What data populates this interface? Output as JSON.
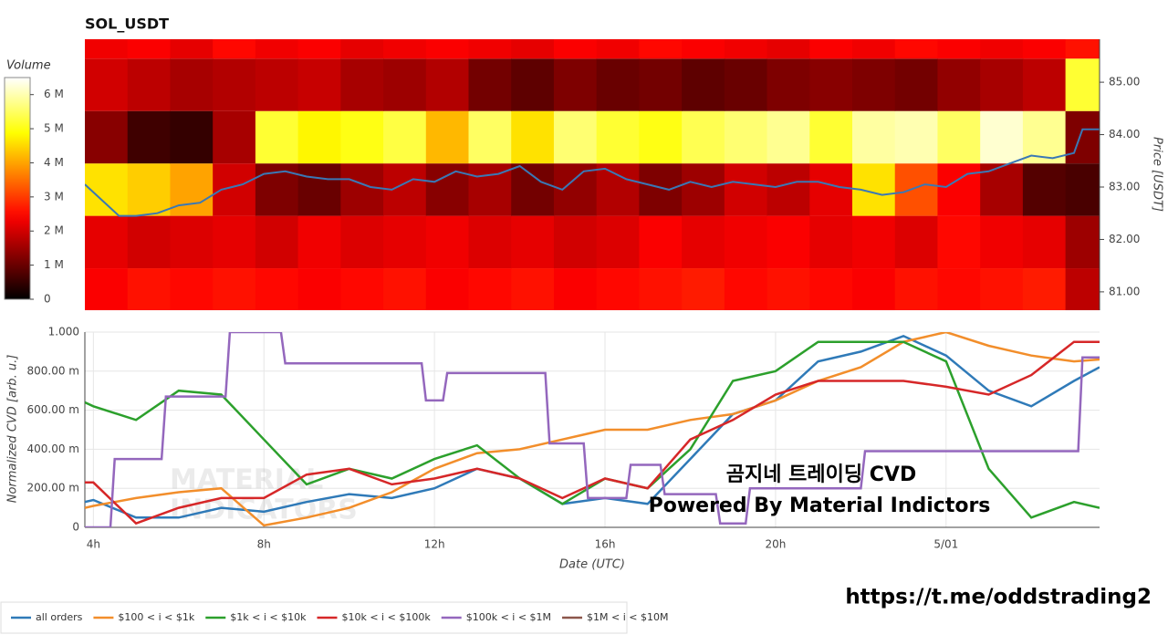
{
  "chart_data": [
    {
      "type": "heatmap",
      "title": "SOL_USDT",
      "ylabel": "Price [USDT]",
      "colorbar_title": "Volume",
      "colormap": "hot",
      "x": [
        3.8,
        4.8,
        5.8,
        6.8,
        7.8,
        8.8,
        9.8,
        10.8,
        11.8,
        12.8,
        13.8,
        14.8,
        15.8,
        16.8,
        17.8,
        18.8,
        19.8,
        20.8,
        21.8,
        22.8,
        23.8,
        24.8,
        25.8,
        26.8,
        27.6
      ],
      "y_bins": [
        80.45,
        81.45,
        82.45,
        83.45,
        84.45,
        85.45,
        86.45
      ],
      "values": [
        [
          2400000,
          2600000,
          2500000,
          2600000,
          2500000,
          2400000,
          2500000,
          2600000,
          2400000,
          2500000,
          2600000,
          2400000,
          2500000,
          2600000,
          2700000,
          2500000,
          2600000,
          2500000,
          2400000,
          2600000,
          2500000,
          2600000,
          2700000,
          1800000
        ],
        [
          2200000,
          2000000,
          2100000,
          2200000,
          2000000,
          2300000,
          2100000,
          2200000,
          2300000,
          2100000,
          2200000,
          2000000,
          2100000,
          2400000,
          2200000,
          2300000,
          2400000,
          2200000,
          2300000,
          2100000,
          2500000,
          2300000,
          2200000,
          1500000
        ],
        [
          4600000,
          4400000,
          4000000,
          2000000,
          1200000,
          1000000,
          1500000,
          1800000,
          1300000,
          1600000,
          1100000,
          1400000,
          1700000,
          1200000,
          1500000,
          2000000,
          1800000,
          2200000,
          4600000,
          3200000,
          2400000,
          1600000,
          800000,
          700000
        ],
        [
          1300000,
          600000,
          500000,
          1600000,
          5200000,
          4800000,
          5000000,
          5300000,
          4200000,
          5500000,
          4600000,
          5600000,
          5200000,
          5000000,
          5400000,
          5600000,
          5800000,
          5200000,
          5900000,
          6000000,
          5500000,
          6200000,
          5800000,
          1200000
        ],
        [
          2000000,
          1800000,
          1600000,
          1700000,
          1800000,
          1900000,
          1600000,
          1500000,
          1700000,
          1100000,
          900000,
          1200000,
          1000000,
          1100000,
          900000,
          1000000,
          1200000,
          1300000,
          1200000,
          1100000,
          1400000,
          1600000,
          1800000,
          5200000
        ],
        [
          2300000,
          2400000,
          2200000,
          2500000,
          2300000,
          2400000,
          2200000,
          2300000,
          2400000,
          2300000,
          2200000,
          2400000,
          2300000,
          2500000,
          2400000,
          2300000,
          2200000,
          2400000,
          2300000,
          2500000,
          2400000,
          2300000,
          2400000,
          2600000
        ]
      ],
      "xlim": [
        3.8,
        27.6
      ],
      "ylim": [
        80.65,
        85.82
      ],
      "yticks": [
        {
          "value": 81,
          "label": "81.00"
        },
        {
          "value": 82,
          "label": "82.00"
        },
        {
          "value": 83,
          "label": "83.00"
        },
        {
          "value": 84,
          "label": "84.00"
        },
        {
          "value": 85,
          "label": "85.00"
        }
      ],
      "zlim": [
        0,
        6500000
      ],
      "zticks": [
        0,
        {
          "value": 1000000,
          "label": "1 M"
        },
        {
          "value": 2000000,
          "label": "2 M"
        },
        {
          "value": 3000000,
          "label": "3 M"
        },
        {
          "value": 4000000,
          "label": "4 M"
        },
        {
          "value": 5000000,
          "label": "5 M"
        },
        {
          "value": 6000000,
          "label": "6 M"
        }
      ],
      "price_line": {
        "color": "#3a78b5",
        "x": [
          3.8,
          4.2,
          4.6,
          5.0,
          5.5,
          6.0,
          6.5,
          7.0,
          7.5,
          8.0,
          8.5,
          9.0,
          9.5,
          10.0,
          10.5,
          11.0,
          11.5,
          12.0,
          12.5,
          13.0,
          13.5,
          14.0,
          14.5,
          15.0,
          15.5,
          16.0,
          16.5,
          17.0,
          17.5,
          18.0,
          18.5,
          19.0,
          19.5,
          20.0,
          20.5,
          21.0,
          21.5,
          22.0,
          22.5,
          23.0,
          23.5,
          24.0,
          24.5,
          25.0,
          25.5,
          26.0,
          26.5,
          27.0,
          27.2,
          27.6
        ],
        "values": [
          83.05,
          82.75,
          82.45,
          82.45,
          82.5,
          82.65,
          82.7,
          82.95,
          83.05,
          83.25,
          83.3,
          83.2,
          83.15,
          83.15,
          83.0,
          82.95,
          83.15,
          83.1,
          83.3,
          83.2,
          83.25,
          83.4,
          83.1,
          82.95,
          83.3,
          83.35,
          83.15,
          83.05,
          82.95,
          83.1,
          83.0,
          83.1,
          83.05,
          83.0,
          83.1,
          83.1,
          83.0,
          82.95,
          82.85,
          82.9,
          83.05,
          83.0,
          83.25,
          83.3,
          83.45,
          83.6,
          83.55,
          83.65,
          84.1,
          84.1
        ]
      }
    },
    {
      "type": "line",
      "xlabel": "Date (UTC)",
      "ylabel": "Normalized CVD [arb. u.]",
      "grid": true,
      "xlim": [
        3.8,
        27.6
      ],
      "ylim": [
        0,
        1.0
      ],
      "xticks": [
        {
          "value": 4,
          "label": "4h"
        },
        {
          "value": 8,
          "label": "8h"
        },
        {
          "value": 12,
          "label": "12h"
        },
        {
          "value": 16,
          "label": "16h"
        },
        {
          "value": 20,
          "label": "20h"
        },
        {
          "value": 24,
          "label": "5/01"
        }
      ],
      "yticks": [
        0,
        {
          "value": 0.2,
          "label": "200.00 m"
        },
        {
          "value": 0.4,
          "label": "400.00 m"
        },
        {
          "value": 0.6,
          "label": "600.00 m"
        },
        {
          "value": 0.8,
          "label": "800.00 m"
        },
        {
          "value": 1.0,
          "label": "1.000"
        }
      ],
      "series": [
        {
          "name": "all orders",
          "color": "#2f7ab8",
          "x": [
            3.8,
            4,
            5,
            6,
            7,
            8,
            9,
            10,
            11,
            12,
            13,
            14,
            15,
            16,
            17,
            18,
            19,
            20,
            21,
            22,
            23,
            24,
            25,
            26,
            27,
            27.6
          ],
          "values": [
            0.13,
            0.14,
            0.05,
            0.05,
            0.1,
            0.08,
            0.13,
            0.17,
            0.15,
            0.2,
            0.3,
            0.25,
            0.12,
            0.15,
            0.12,
            0.35,
            0.58,
            0.65,
            0.85,
            0.9,
            0.98,
            0.88,
            0.7,
            0.62,
            0.75,
            0.82
          ]
        },
        {
          "name": "$100 < i < $1k",
          "color": "#f28e2b",
          "x": [
            3.8,
            4,
            5,
            6,
            7,
            8,
            9,
            10,
            11,
            12,
            13,
            14,
            15,
            16,
            17,
            18,
            19,
            20,
            21,
            22,
            23,
            24,
            25,
            26,
            27,
            27.6
          ],
          "values": [
            0.1,
            0.11,
            0.15,
            0.18,
            0.2,
            0.01,
            0.05,
            0.1,
            0.18,
            0.3,
            0.38,
            0.4,
            0.45,
            0.5,
            0.5,
            0.55,
            0.58,
            0.65,
            0.75,
            0.82,
            0.95,
            1.0,
            0.93,
            0.88,
            0.85,
            0.86
          ]
        },
        {
          "name": "$1k < i < $10k",
          "color": "#2ca02c",
          "x": [
            3.8,
            4,
            5,
            6,
            7,
            8,
            9,
            10,
            11,
            12,
            13,
            14,
            15,
            16,
            17,
            18,
            19,
            20,
            21,
            22,
            23,
            24,
            25,
            26,
            27,
            27.6
          ],
          "values": [
            0.64,
            0.62,
            0.55,
            0.7,
            0.68,
            0.45,
            0.22,
            0.3,
            0.25,
            0.35,
            0.42,
            0.25,
            0.12,
            0.25,
            0.2,
            0.4,
            0.75,
            0.8,
            0.95,
            0.95,
            0.95,
            0.85,
            0.3,
            0.05,
            0.13,
            0.1
          ]
        },
        {
          "name": "$10k < i < $100k",
          "color": "#d62728",
          "x": [
            3.8,
            4,
            5,
            6,
            7,
            8,
            9,
            10,
            11,
            12,
            13,
            14,
            15,
            16,
            17,
            18,
            19,
            20,
            21,
            22,
            23,
            24,
            25,
            26,
            27,
            27.6
          ],
          "values": [
            0.23,
            0.23,
            0.02,
            0.1,
            0.15,
            0.15,
            0.27,
            0.3,
            0.22,
            0.25,
            0.3,
            0.25,
            0.15,
            0.25,
            0.2,
            0.45,
            0.55,
            0.68,
            0.75,
            0.75,
            0.75,
            0.72,
            0.68,
            0.78,
            0.95,
            0.95
          ]
        },
        {
          "name": "$100k < i < $1M",
          "color": "#9467bd",
          "x": [
            3.8,
            4.4,
            4.5,
            5.6,
            5.7,
            7.1,
            7.2,
            8.4,
            8.5,
            11.7,
            11.8,
            12.2,
            12.3,
            14.6,
            14.7,
            15.5,
            15.6,
            16.5,
            16.6,
            17.3,
            17.4,
            18.6,
            18.7,
            19.3,
            19.4,
            22.0,
            22.1,
            27.1,
            27.2,
            27.6
          ],
          "values": [
            0,
            0,
            0.35,
            0.35,
            0.67,
            0.67,
            1.0,
            1.0,
            0.84,
            0.84,
            0.65,
            0.65,
            0.79,
            0.79,
            0.43,
            0.43,
            0.15,
            0.15,
            0.32,
            0.32,
            0.17,
            0.17,
            0.02,
            0.02,
            0.2,
            0.2,
            0.39,
            0.39,
            0.87,
            0.87
          ]
        },
        {
          "name": "$1M < i < $10M",
          "color": "#8c564b",
          "x": [],
          "values": []
        }
      ],
      "annotations": [
        "곰지네 트레이딩 CVD",
        "Powered By Material Indictors"
      ],
      "watermark": [
        "MATERIAL",
        "INDICATORS"
      ]
    }
  ],
  "footer_link": "https://t.me/oddstrading2"
}
